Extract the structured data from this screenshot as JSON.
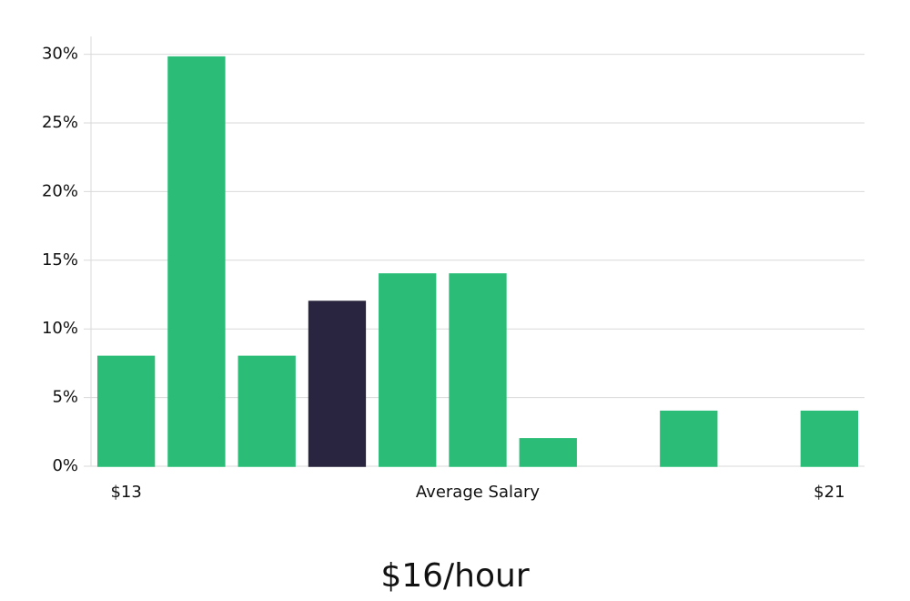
{
  "chart_data": {
    "type": "bar",
    "categories": [
      "$13",
      null,
      null,
      null,
      null,
      "Average Salary",
      null,
      null,
      null,
      null,
      "$21"
    ],
    "values": [
      8,
      29.8,
      8,
      12,
      14,
      14,
      2,
      0,
      4,
      0,
      4
    ],
    "colors": [
      "#2bbd77",
      "#2bbd77",
      "#2bbd77",
      "#29243f",
      "#2bbd77",
      "#2bbd77",
      "#2bbd77",
      "#2bbd77",
      "#2bbd77",
      "#2bbd77",
      "#2bbd77"
    ],
    "ylim": [
      0,
      31.3
    ],
    "yticks": [
      {
        "value": 0,
        "label": "0%"
      },
      {
        "value": 5,
        "label": "5%"
      },
      {
        "value": 10,
        "label": "10%"
      },
      {
        "value": 15,
        "label": "15%"
      },
      {
        "value": 20,
        "label": "20%"
      },
      {
        "value": 25,
        "label": "25%"
      },
      {
        "value": 30,
        "label": "30%"
      }
    ],
    "grid": true,
    "annotation": "$16/hour"
  }
}
